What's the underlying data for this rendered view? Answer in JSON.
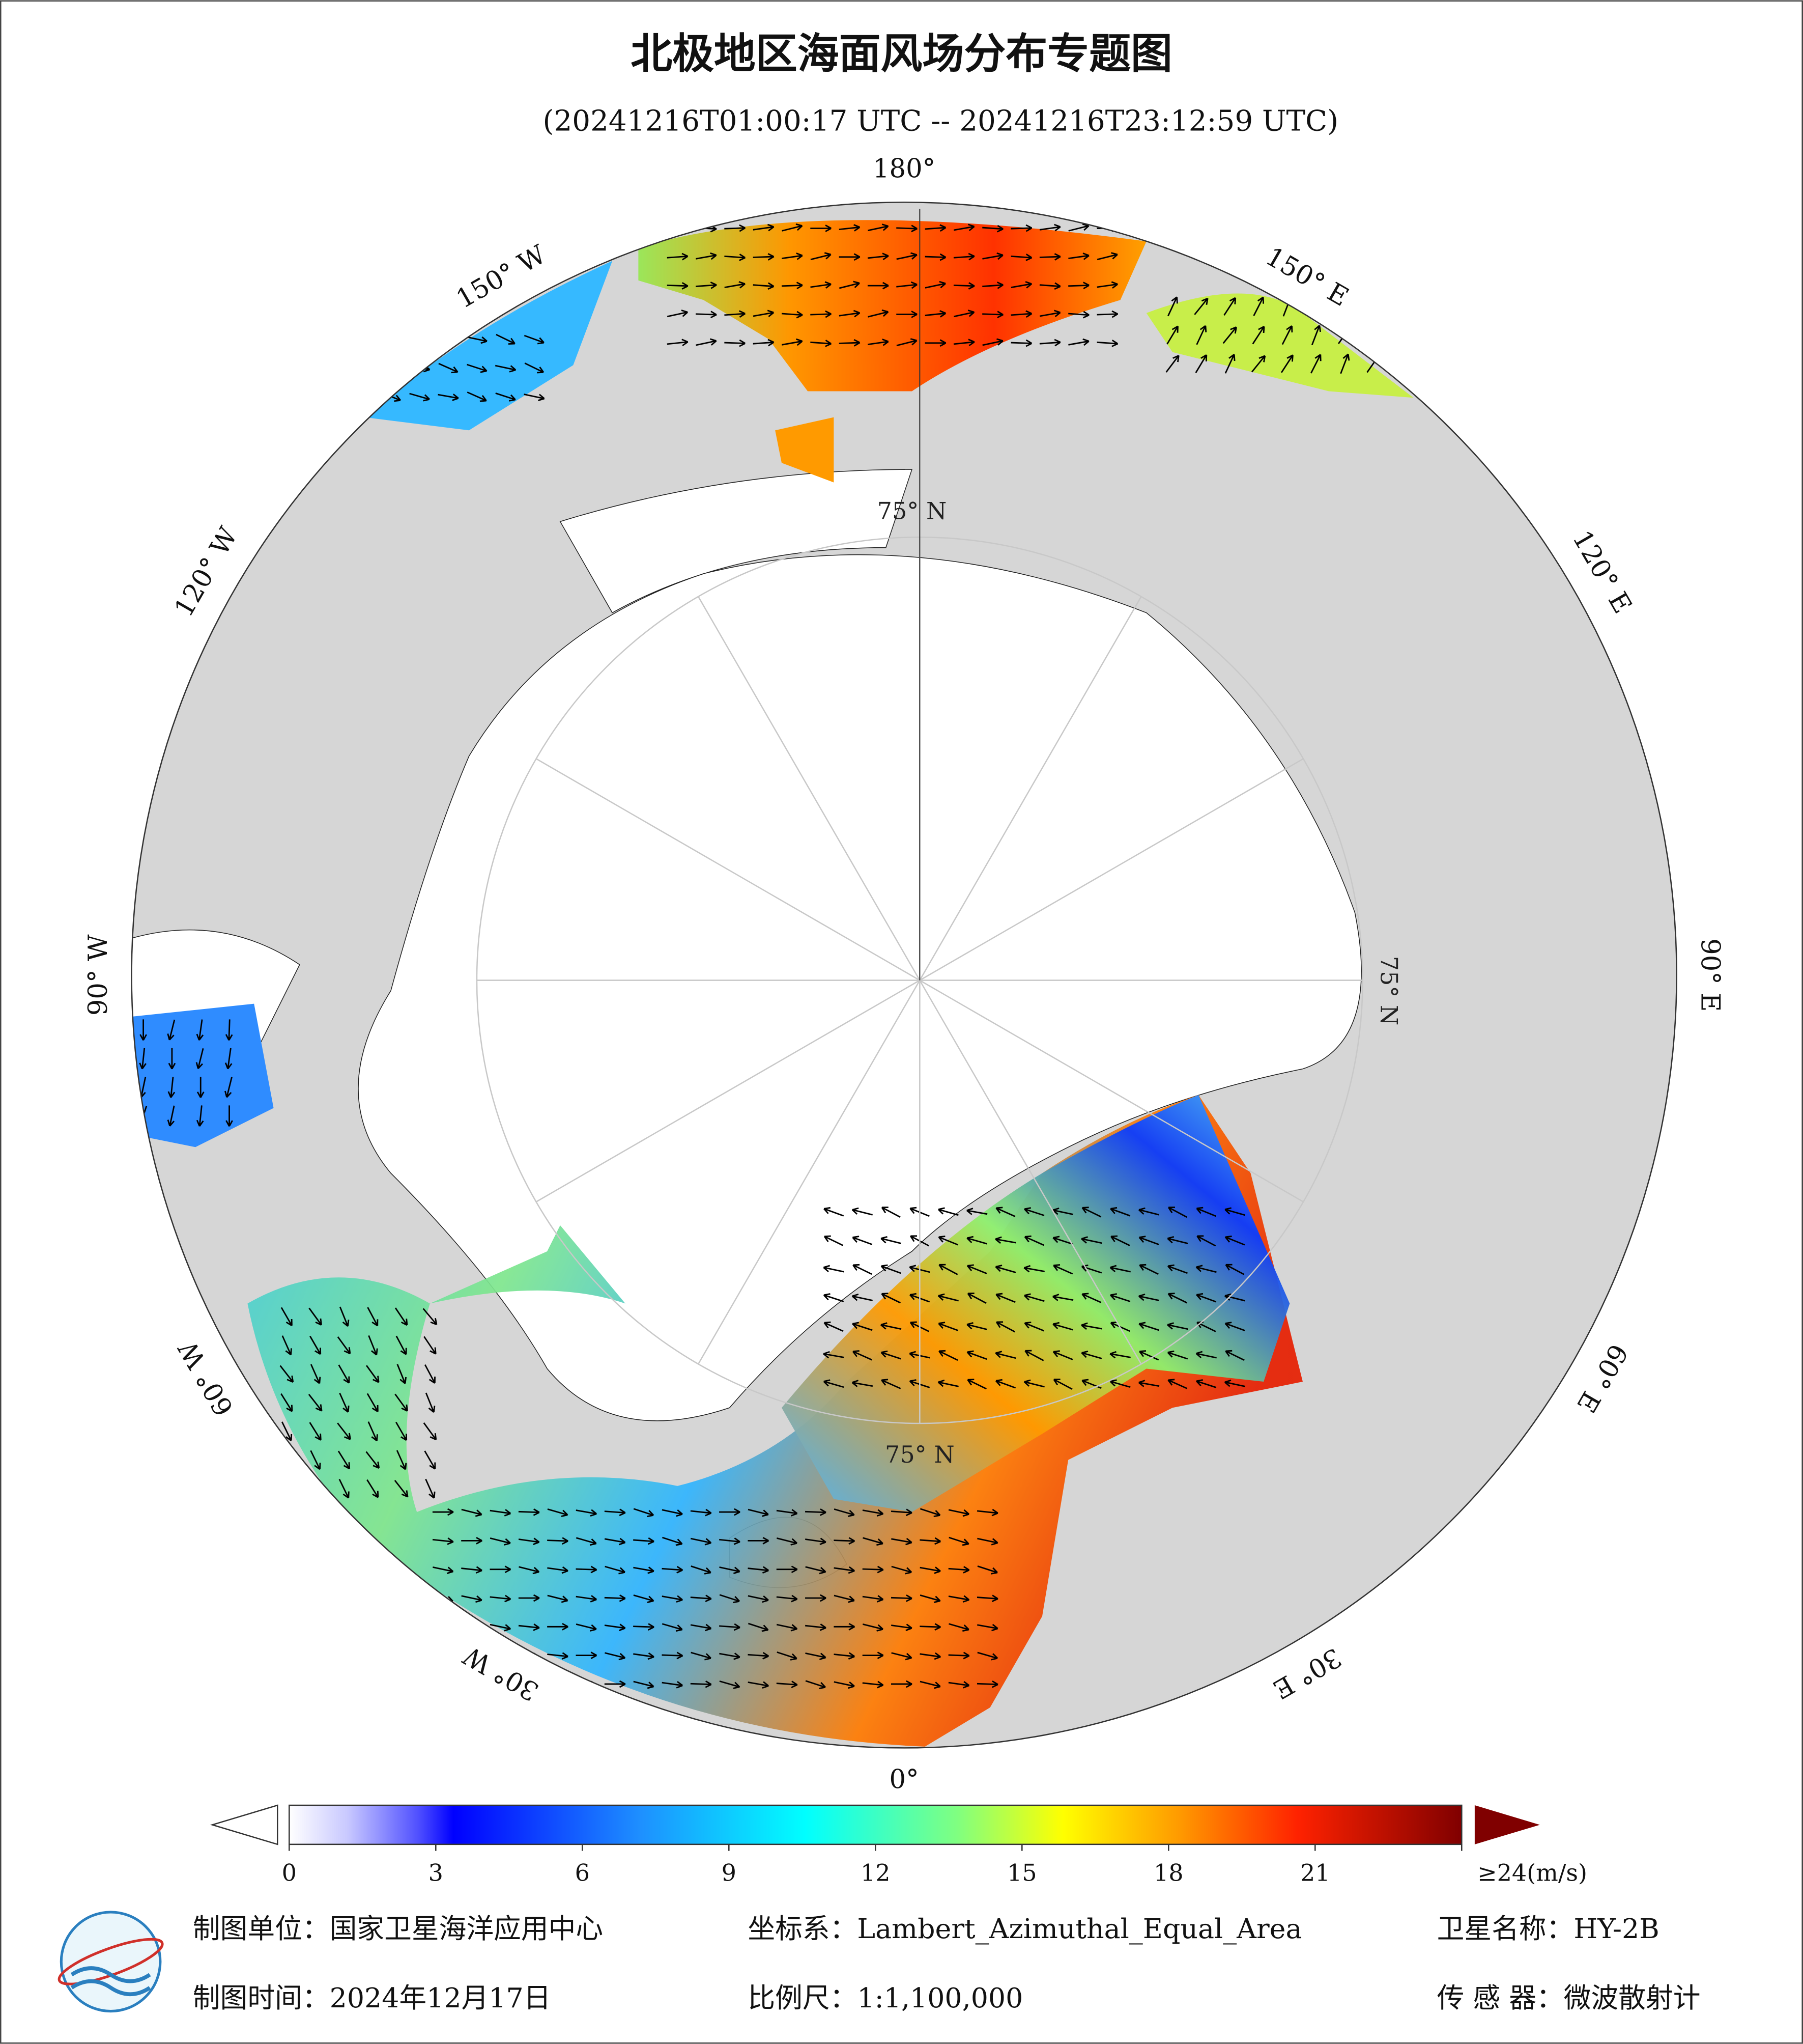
{
  "title": "北极地区海面风场分布专题图",
  "subtitle": "(20241216T01:00:17 UTC -- 20241216T23:12:59 UTC)",
  "map": {
    "lon_labels": [
      "180°",
      "150° W",
      "120° W",
      "90° W",
      "60° W",
      "30° W",
      "0°",
      "30° E",
      "60° E",
      "90° E",
      "120° E",
      "150° E"
    ],
    "lat_labels": [
      "75° N",
      "75° N",
      "75° N"
    ]
  },
  "colorbar": {
    "lim": [
      0,
      24
    ],
    "ticks": [
      0,
      3,
      6,
      9,
      12,
      15,
      18,
      21,
      {
        "value": 24,
        "label": "≥24(m/s)"
      }
    ]
  },
  "footer": {
    "unit": "制图单位：国家卫星海洋应用中心",
    "crs": "坐标系：Lambert_Azimuthal_Equal_Area",
    "satellite": "卫星名称：HY-2B",
    "date": "制图时间：2024年12月17日",
    "scale": "比例尺：1:1,100,000",
    "sensor": "传 感 器：微波散射计"
  }
}
